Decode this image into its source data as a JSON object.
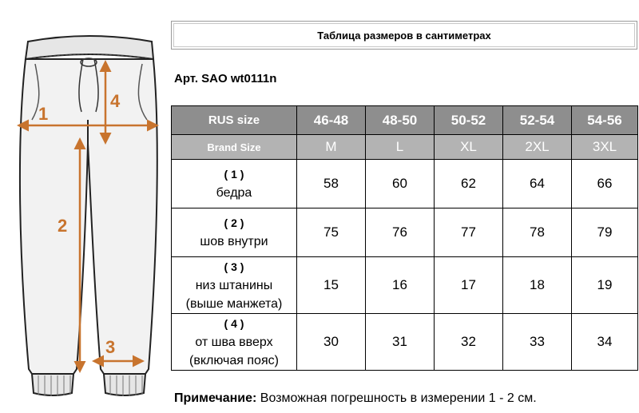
{
  "title": "Таблица размеров в сантиметрах",
  "article": "Арт. SAO wt0111n",
  "diagram": {
    "labels": [
      "1",
      "2",
      "3",
      "4"
    ],
    "accent_color": "#c8742e"
  },
  "table": {
    "rus_header": "RUS size",
    "brand_header": "Brand Size",
    "rus_sizes": [
      "46-48",
      "48-50",
      "50-52",
      "52-54",
      "54-56"
    ],
    "brand_sizes": [
      "M",
      "L",
      "XL",
      "2XL",
      "3XL"
    ],
    "rows": [
      {
        "num": "( 1 )",
        "line1": "бедра",
        "line2": "",
        "values": [
          "58",
          "60",
          "62",
          "64",
          "66"
        ]
      },
      {
        "num": "( 2 )",
        "line1": "шов внутри",
        "line2": "",
        "values": [
          "75",
          "76",
          "77",
          "78",
          "79"
        ]
      },
      {
        "num": "( 3 )",
        "line1": "низ штанины",
        "line2": "(выше манжета)",
        "values": [
          "15",
          "16",
          "17",
          "18",
          "19"
        ]
      },
      {
        "num": "( 4 )",
        "line1": "от шва вверх",
        "line2": "(включая пояс)",
        "values": [
          "30",
          "31",
          "32",
          "33",
          "34"
        ]
      }
    ]
  },
  "note": {
    "label": "Примечание:",
    "text": " Возможная погрешность в измерении 1 - 2 см."
  }
}
